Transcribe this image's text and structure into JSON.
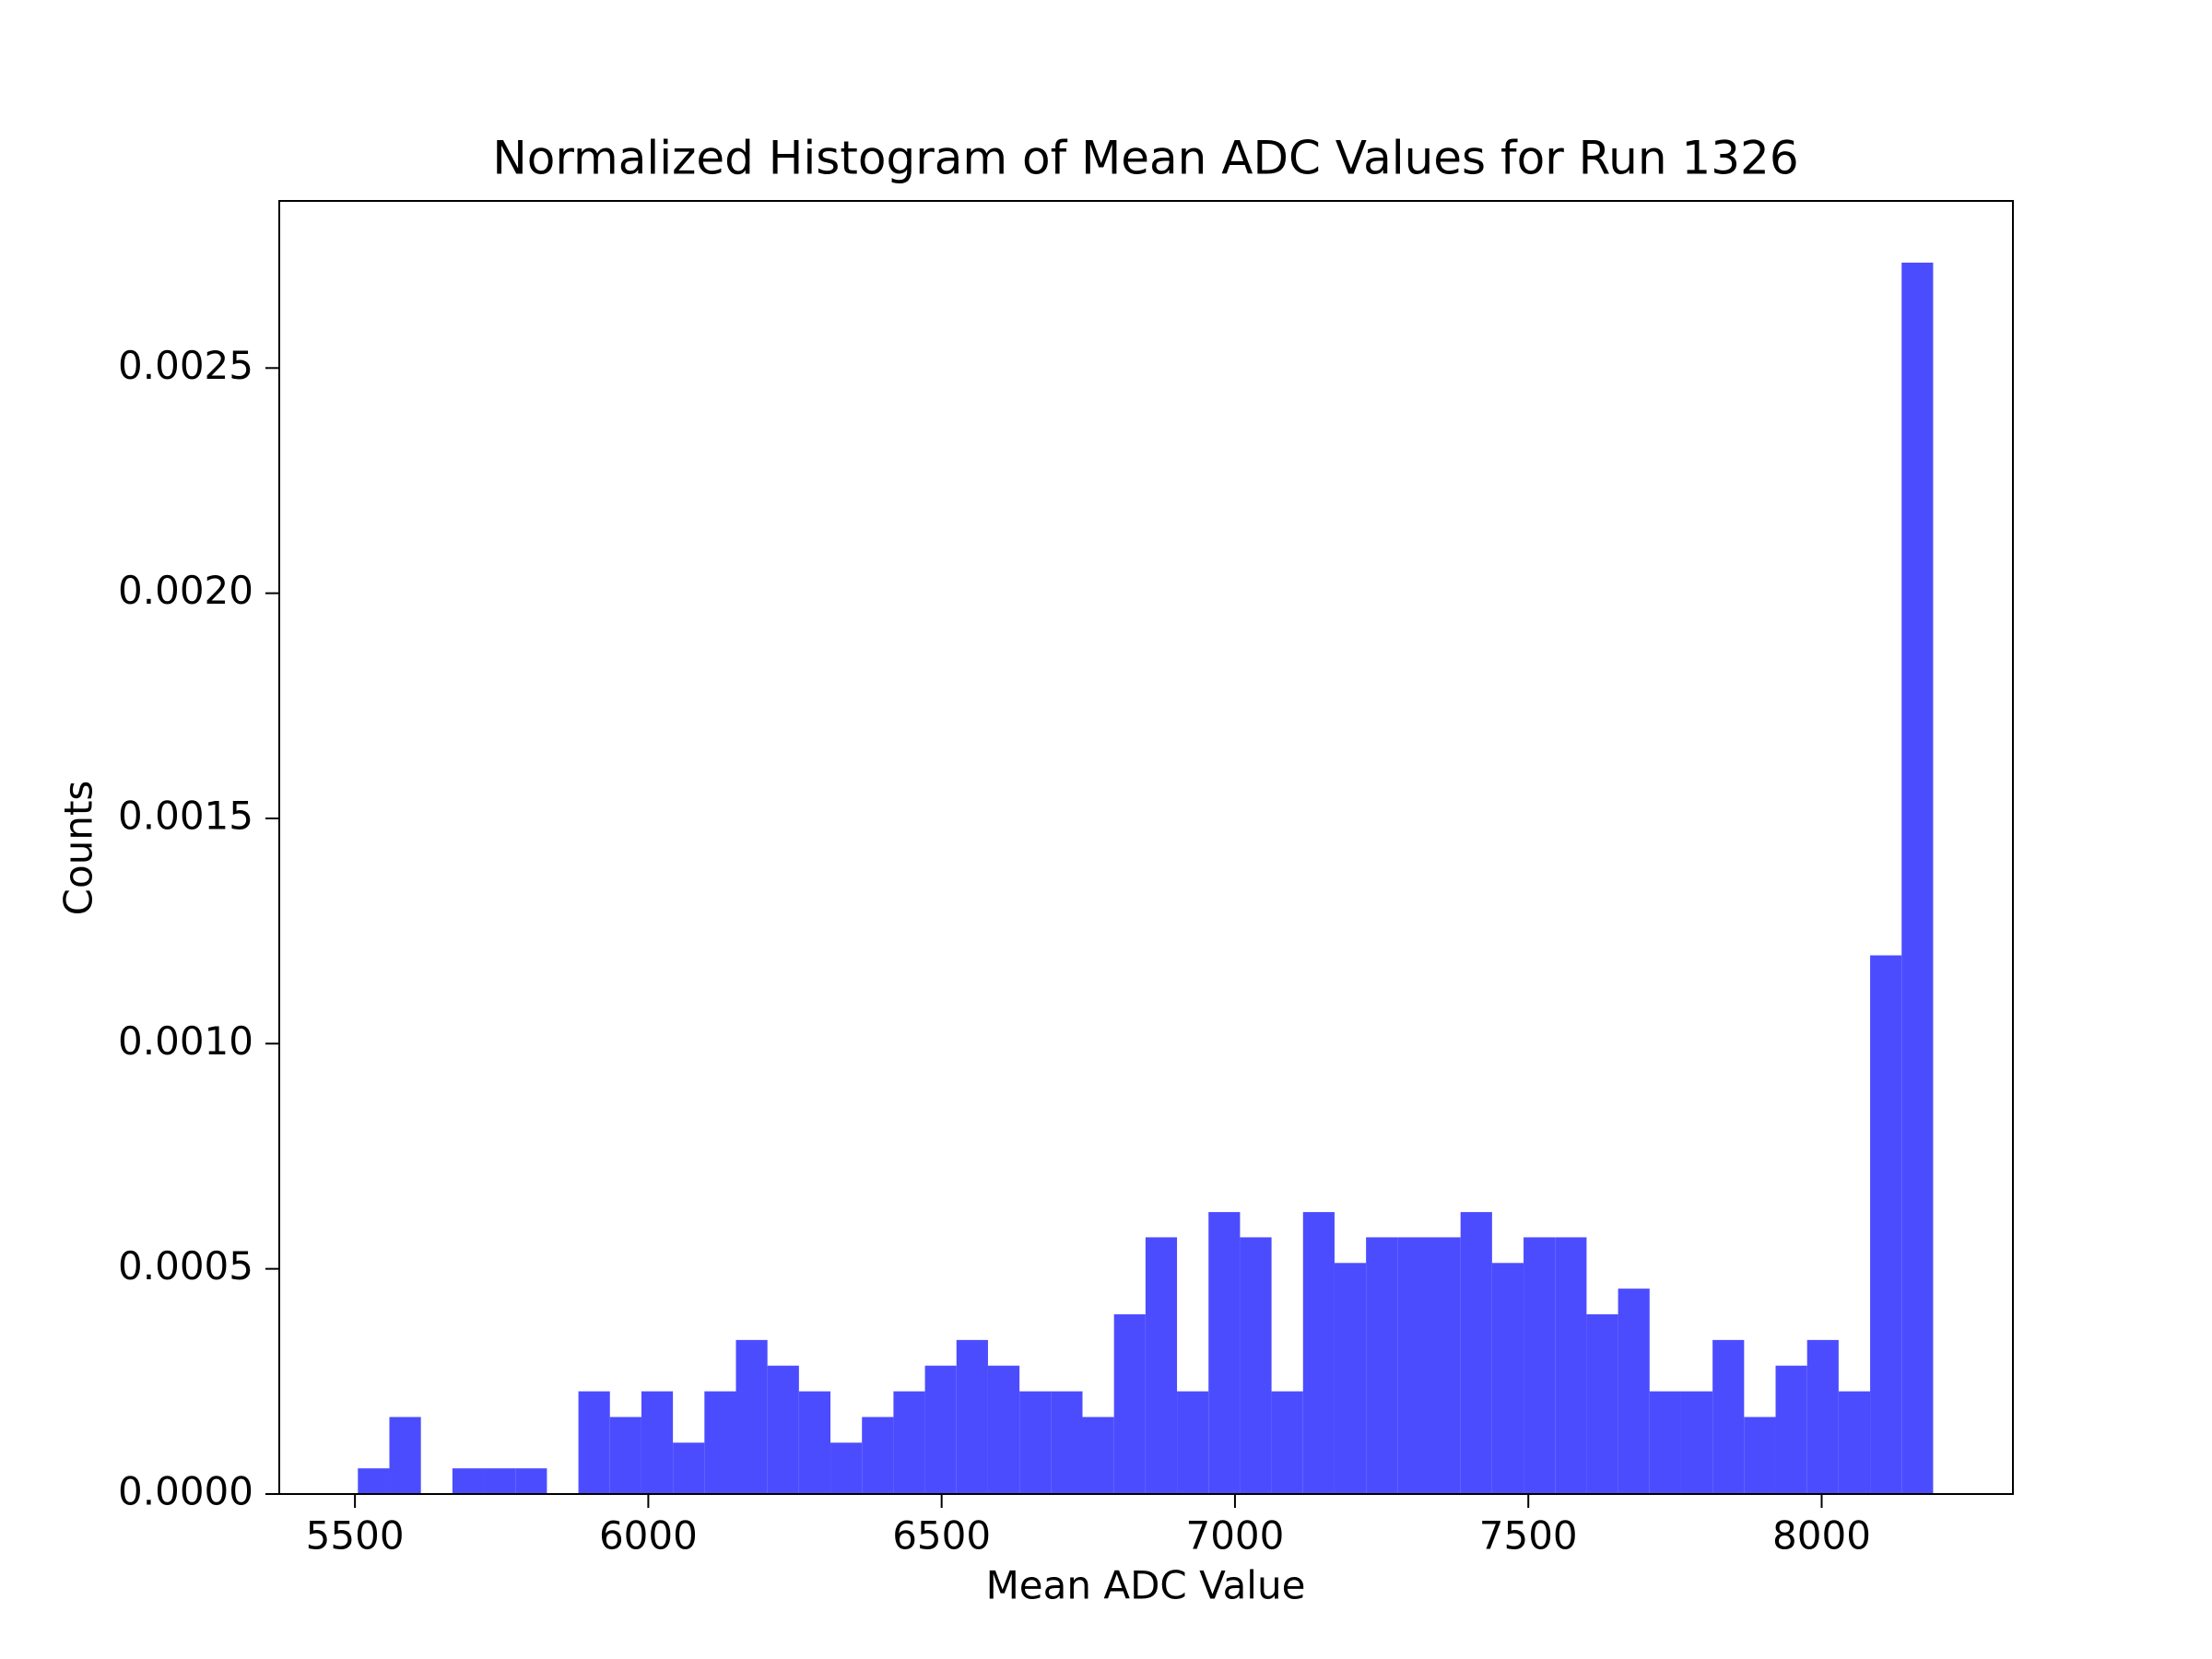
{
  "chart_data": {
    "type": "histogram",
    "title": "Normalized Histogram of Mean ADC Values for Run 1326",
    "xlabel": "Mean ADC Value",
    "ylabel": "Counts",
    "bins": [
      5505.0,
      5558.7,
      5612.4,
      5666.1,
      5719.8,
      5773.5,
      5827.2,
      5880.9,
      5934.6,
      5988.3,
      6042.0,
      6095.7,
      6149.4,
      6203.1,
      6256.8,
      6310.5,
      6364.2,
      6417.9,
      6471.6,
      6525.3,
      6579.0,
      6632.7,
      6686.4,
      6740.1,
      6793.8,
      6847.5,
      6901.2,
      6954.9,
      7008.6,
      7062.3,
      7116.0,
      7169.7,
      7223.4,
      7277.1,
      7330.8,
      7384.5,
      7438.2,
      7491.9,
      7545.6,
      7599.3,
      7653.0,
      7706.7,
      7760.4,
      7814.1,
      7867.8,
      7921.5,
      7975.2,
      8028.9,
      8082.6,
      8136.3,
      8190.0
    ],
    "values": [
      5.7e-05,
      0.000171,
      0,
      5.7e-05,
      5.7e-05,
      5.7e-05,
      0,
      0.000228,
      0.000171,
      0.000228,
      0.000114,
      0.000228,
      0.000342,
      0.000285,
      0.000228,
      0.000114,
      0.000171,
      0.000228,
      0.000285,
      0.000342,
      0.000285,
      0.000228,
      0.000228,
      0.000171,
      0.000399,
      0.00057,
      0.000228,
      0.000626,
      0.00057,
      0.000228,
      0.000626,
      0.000513,
      0.00057,
      0.00057,
      0.00057,
      0.000626,
      0.000513,
      0.00057,
      0.00057,
      0.000399,
      0.000456,
      0.000228,
      0.000228,
      0.000342,
      0.000171,
      0.000285,
      0.000342,
      0.000228,
      0.001196,
      0.002734
    ],
    "color": "#4c4cff",
    "xlim": [
      5371,
      8326
    ],
    "ylim": [
      0,
      0.002871
    ],
    "xticks": [
      5500,
      6000,
      6500,
      7000,
      7500,
      8000
    ],
    "yticks": [
      {
        "value": 0,
        "label": "0.0000"
      },
      {
        "value": 0.0005,
        "label": "0.0005"
      },
      {
        "value": 0.001,
        "label": "0.0010"
      },
      {
        "value": 0.0015,
        "label": "0.0015"
      },
      {
        "value": 0.002,
        "label": "0.0020"
      },
      {
        "value": 0.0025,
        "label": "0.0025"
      }
    ]
  }
}
